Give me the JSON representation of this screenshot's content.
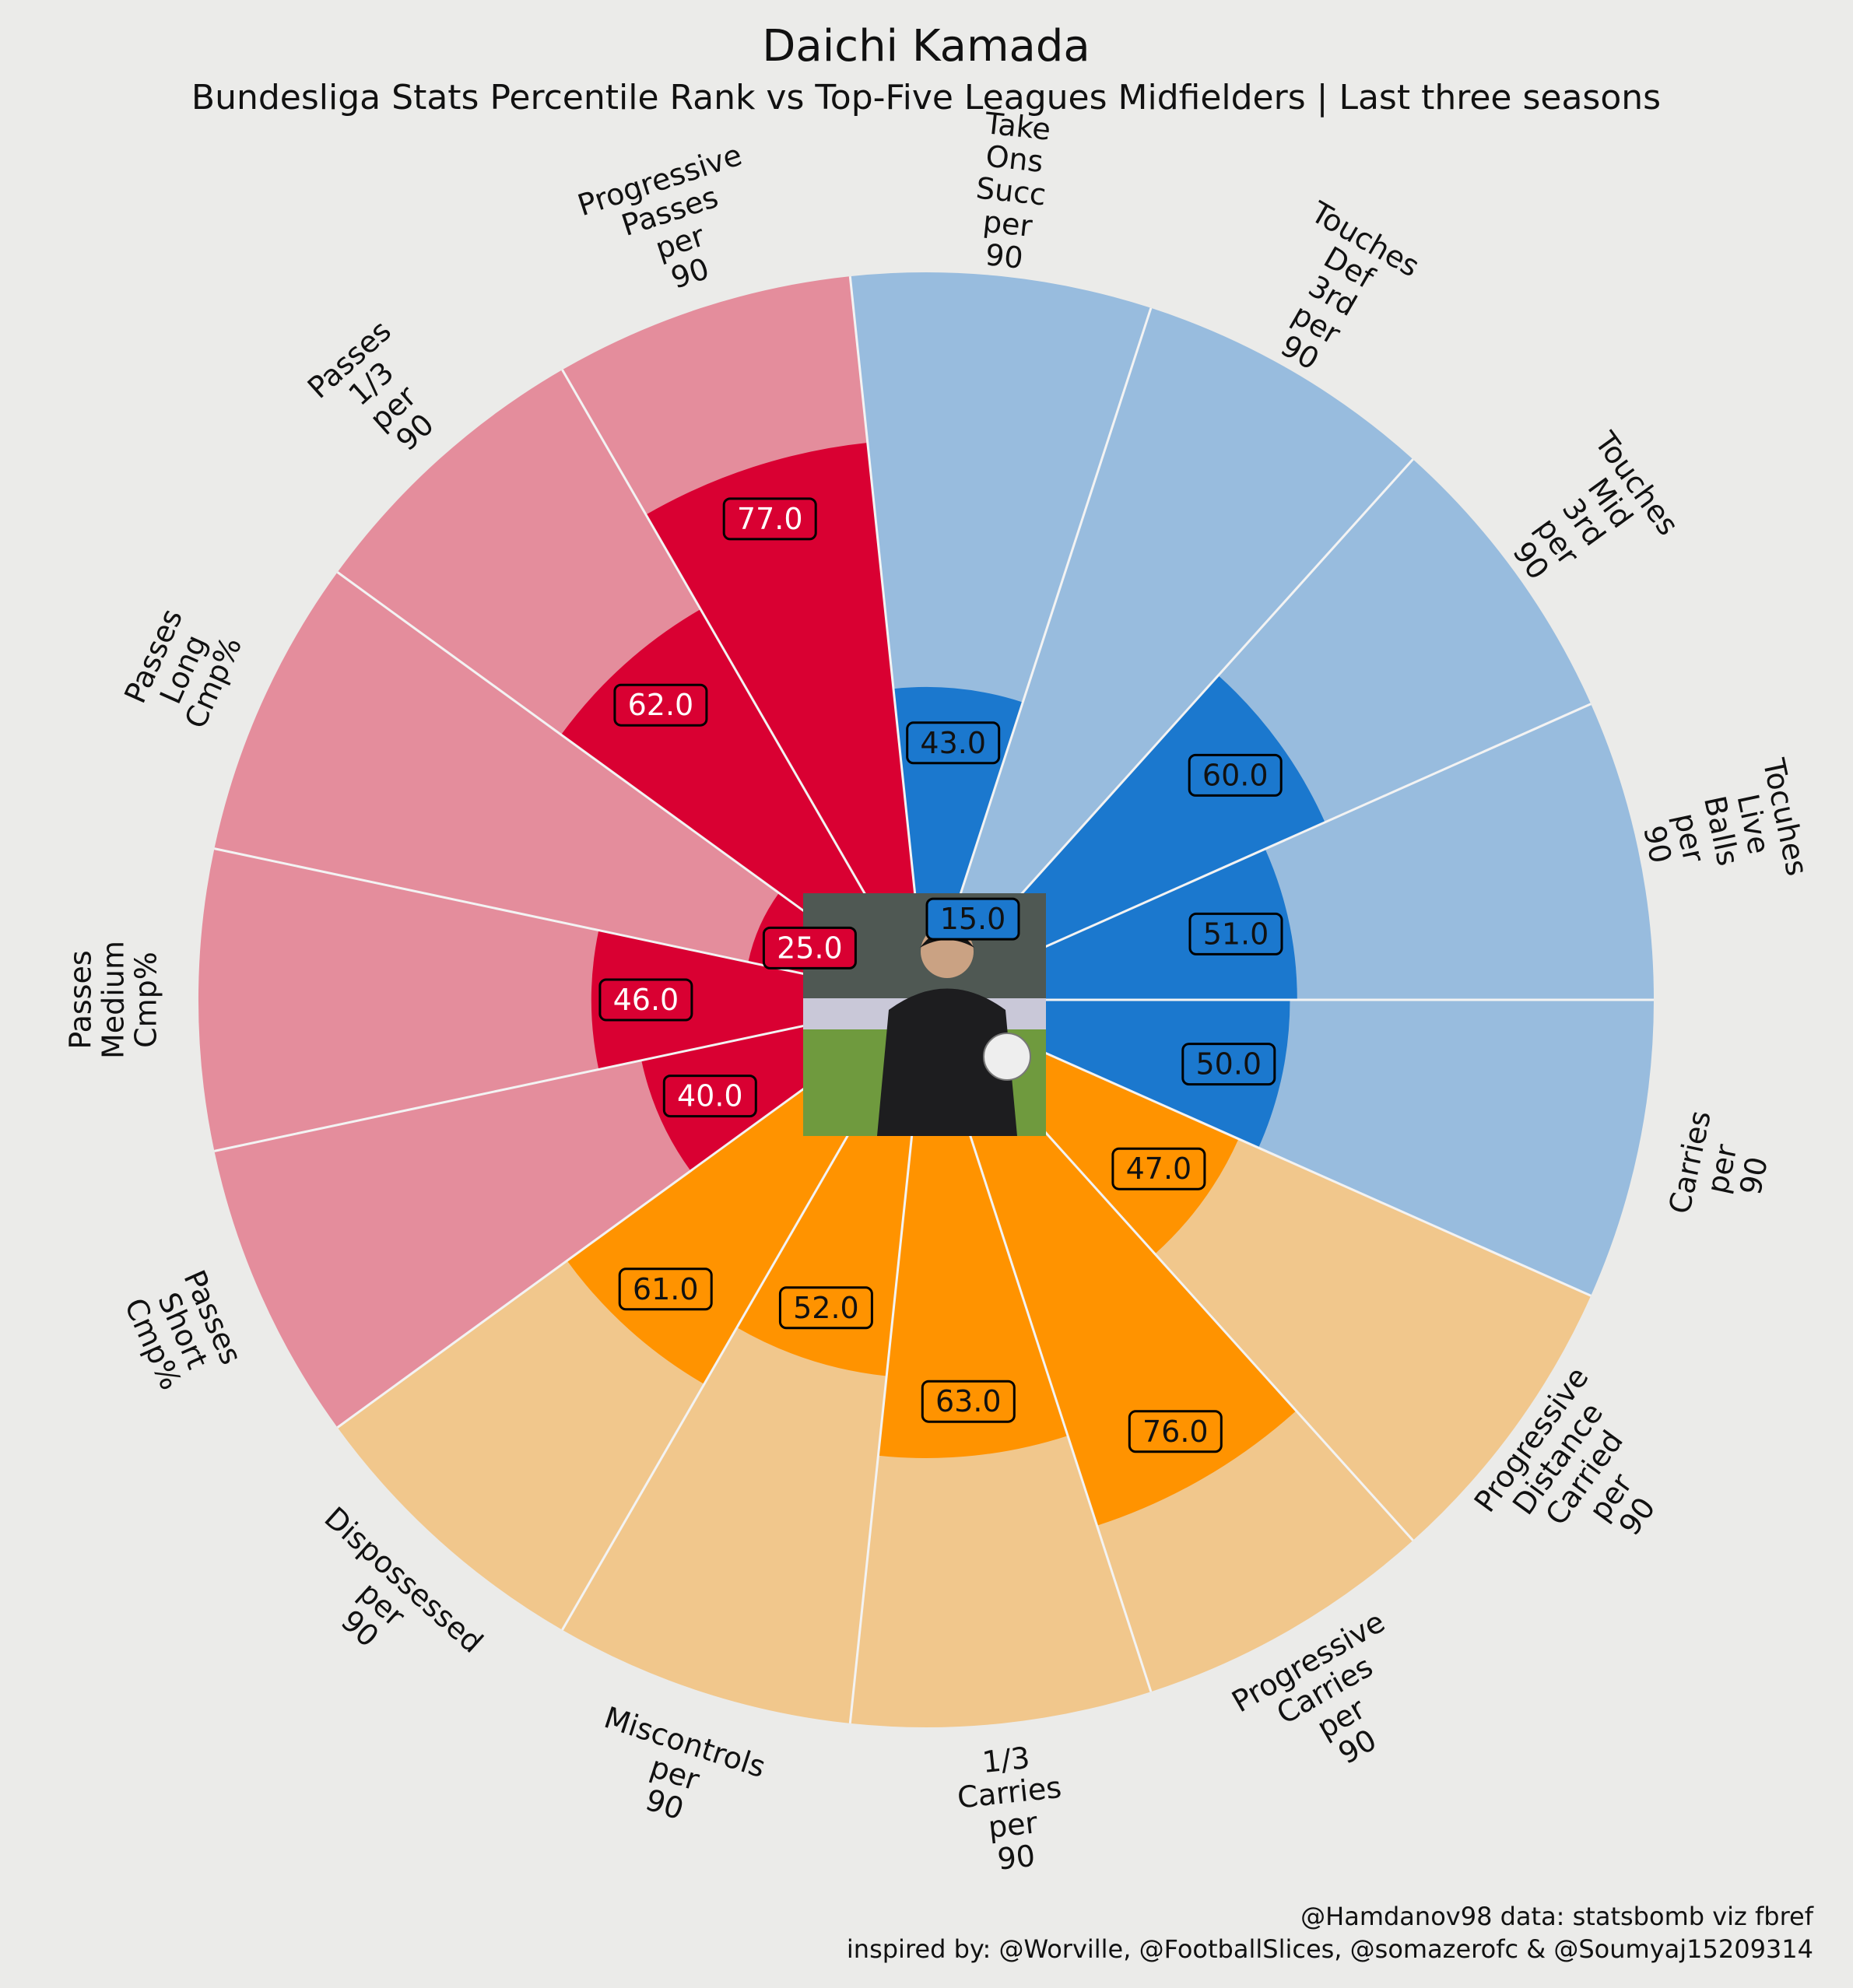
{
  "header": {
    "title": "Daichi Kamada",
    "subtitle": "Bundesliga Stats Percentile Rank vs Top-Five Leagues Midfielders | Last three seasons"
  },
  "footer": {
    "credit_line1": "@Hamdanov98 data: statsbomb viz fbref",
    "credit_line2": "inspired by: @Worville, @FootballSlices, @somazerofc & @Soumyaj15209314"
  },
  "center_image": {
    "name": "player-photo"
  },
  "colors": {
    "background": "#ebebe9",
    "red": "#d90032",
    "red_light": "#e48d9c",
    "blue": "#1b78ce",
    "blue_light": "#98bcde",
    "orange": "#ff9300",
    "orange_light": "#f1c78c",
    "separator": "#f3f3f3"
  },
  "chart_data": {
    "type": "pie",
    "kind": "polar-bar (pizza) percentile chart",
    "rlim": [
      0,
      100
    ],
    "categories": [
      "Carries per 90",
      "Tocuhes Live Balls per 90",
      "Touches Mid 3rd per 90",
      "Touches Def 3rd per 90",
      "Take Ons Succ per 90",
      "Progressive Passes per 90",
      "Passes 1/3 per 90",
      "Passes Long Cmp%",
      "Passes Medium Cmp%",
      "Passes Short Cmp%",
      "Dispossessed per 90",
      "Miscontrols per 90",
      "1/3 Carries per 90",
      "Progressive Carries per 90",
      "Progressive Distance Carried per 90"
    ],
    "label_lines": [
      [
        "Carries",
        "per",
        "90"
      ],
      [
        "Tocuhes",
        "Live",
        "Balls",
        "per",
        "90"
      ],
      [
        "Touches",
        "Mid",
        "3rd",
        "per",
        "90"
      ],
      [
        "Touches",
        "Def",
        "3rd",
        "per",
        "90"
      ],
      [
        "Take",
        "Ons",
        "Succ",
        "per",
        "90"
      ],
      [
        "Progressive",
        "Passes",
        "per",
        "90"
      ],
      [
        "Passes",
        "1/3",
        "per",
        "90"
      ],
      [
        "Passes",
        "Long",
        "Cmp%"
      ],
      [
        "Passes",
        "Medium",
        "Cmp%"
      ],
      [
        "Passes",
        "Short",
        "Cmp%"
      ],
      [
        "Dispossessed",
        "per",
        "90"
      ],
      [
        "Miscontrols",
        "per",
        "90"
      ],
      [
        "1/3",
        "Carries",
        "per",
        "90"
      ],
      [
        "Progressive",
        "Carries",
        "per",
        "90"
      ],
      [
        "Progressive",
        "Distance",
        "Carried",
        "per",
        "90"
      ]
    ],
    "values": [
      50,
      51,
      60,
      15,
      43,
      77,
      62,
      25,
      46,
      40,
      61,
      52,
      63,
      76,
      47
    ],
    "value_labels": [
      "50.0",
      "51.0",
      "60.0",
      "15.0",
      "43.0",
      "77.0",
      "62.0",
      "25.0",
      "46.0",
      "40.0",
      "61.0",
      "52.0",
      "63.0",
      "76.0",
      "47.0"
    ],
    "groups": [
      "blue",
      "blue",
      "blue",
      "blue",
      "blue",
      "red",
      "red",
      "red",
      "red",
      "red",
      "orange",
      "orange",
      "orange",
      "orange",
      "orange"
    ]
  }
}
